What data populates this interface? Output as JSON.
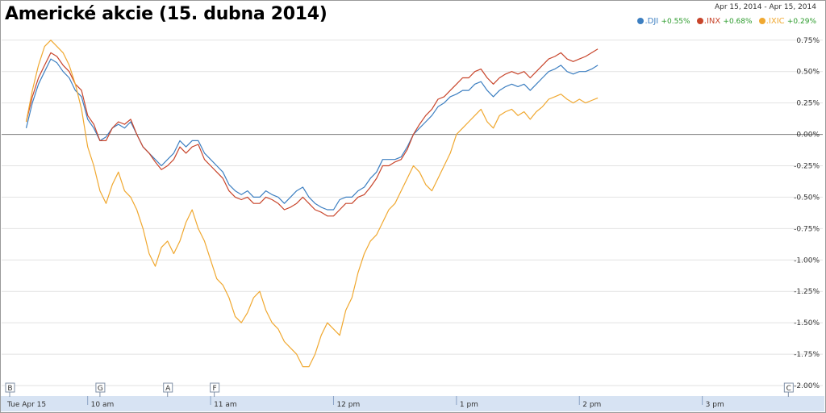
{
  "title": "Americké akcie (15. dubna 2014)",
  "date_range": "Apr 15, 2014  -  Apr 15, 2014",
  "legend": [
    {
      "symbol": ".DJI",
      "change": "+0.55%",
      "color": "#3d7fc1"
    },
    {
      "symbol": ".INX",
      "change": "+0.68%",
      "color": "#c8452b"
    },
    {
      "symbol": ".IXIC",
      "change": "+0.29%",
      "color": "#f0a830"
    }
  ],
  "colors": {
    "positive_change": "#2a9a2a",
    "grid": "#e2e2e2",
    "zero_line": "#777777",
    "axis_bar": "#d7e3f3"
  },
  "markers": [
    {
      "label": "B",
      "time": 9.3
    },
    {
      "label": "G",
      "time": 10.1
    },
    {
      "label": "A",
      "time": 10.65
    },
    {
      "label": "F",
      "time": 11.03
    },
    {
      "label": "C",
      "time": 15.7
    }
  ],
  "chart_data": {
    "type": "line",
    "title": "Americké akcie (15. dubna 2014)",
    "x_unit": "hour of day",
    "x_tick_labels": [
      {
        "label": "Tue Apr 15",
        "x": 9.3
      },
      {
        "label": "10 am",
        "x": 10
      },
      {
        "label": "11 am",
        "x": 11
      },
      {
        "label": "12 pm",
        "x": 12
      },
      {
        "label": "1 pm",
        "x": 13
      },
      {
        "label": "2 pm",
        "x": 14
      },
      {
        "label": "3 pm",
        "x": 15
      }
    ],
    "y_ticks": [
      0.75,
      0.5,
      0.25,
      0,
      -0.25,
      -0.5,
      -0.75,
      -1,
      -1.25,
      -1.5,
      -1.75,
      -2
    ],
    "y_tick_labels": [
      "0.75%",
      "0.50%",
      "0.25%",
      "0.00%",
      "-0.25%",
      "-0.50%",
      "-0.75%",
      "-1.00%",
      "-1.25%",
      "-1.50%",
      "-1.75%",
      "-2.00%"
    ],
    "xlim": [
      9.3,
      15.98
    ],
    "ylim": [
      -2.0,
      0.8
    ],
    "grid": true,
    "legend_position": "top-right",
    "series": [
      {
        "name": ".DJI",
        "color": "#3d7fc1",
        "points": [
          [
            9.5,
            0.05
          ],
          [
            9.55,
            0.25
          ],
          [
            9.6,
            0.4
          ],
          [
            9.65,
            0.5
          ],
          [
            9.7,
            0.6
          ],
          [
            9.75,
            0.57
          ],
          [
            9.8,
            0.5
          ],
          [
            9.85,
            0.45
          ],
          [
            9.9,
            0.35
          ],
          [
            9.95,
            0.3
          ],
          [
            10.0,
            0.12
          ],
          [
            10.05,
            0.05
          ],
          [
            10.1,
            -0.05
          ],
          [
            10.15,
            -0.02
          ],
          [
            10.2,
            0.05
          ],
          [
            10.25,
            0.08
          ],
          [
            10.3,
            0.05
          ],
          [
            10.35,
            0.1
          ],
          [
            10.4,
            0.0
          ],
          [
            10.45,
            -0.1
          ],
          [
            10.5,
            -0.15
          ],
          [
            10.55,
            -0.2
          ],
          [
            10.6,
            -0.25
          ],
          [
            10.65,
            -0.2
          ],
          [
            10.7,
            -0.15
          ],
          [
            10.75,
            -0.05
          ],
          [
            10.8,
            -0.1
          ],
          [
            10.85,
            -0.05
          ],
          [
            10.9,
            -0.05
          ],
          [
            10.95,
            -0.15
          ],
          [
            11.0,
            -0.2
          ],
          [
            11.05,
            -0.25
          ],
          [
            11.1,
            -0.3
          ],
          [
            11.15,
            -0.4
          ],
          [
            11.2,
            -0.45
          ],
          [
            11.25,
            -0.48
          ],
          [
            11.3,
            -0.45
          ],
          [
            11.35,
            -0.5
          ],
          [
            11.4,
            -0.5
          ],
          [
            11.45,
            -0.45
          ],
          [
            11.5,
            -0.48
          ],
          [
            11.55,
            -0.5
          ],
          [
            11.6,
            -0.55
          ],
          [
            11.65,
            -0.5
          ],
          [
            11.7,
            -0.45
          ],
          [
            11.75,
            -0.42
          ],
          [
            11.8,
            -0.5
          ],
          [
            11.85,
            -0.55
          ],
          [
            11.9,
            -0.58
          ],
          [
            11.95,
            -0.6
          ],
          [
            12.0,
            -0.6
          ],
          [
            12.05,
            -0.52
          ],
          [
            12.1,
            -0.5
          ],
          [
            12.15,
            -0.5
          ],
          [
            12.2,
            -0.45
          ],
          [
            12.25,
            -0.42
          ],
          [
            12.3,
            -0.35
          ],
          [
            12.35,
            -0.3
          ],
          [
            12.4,
            -0.2
          ],
          [
            12.45,
            -0.2
          ],
          [
            12.5,
            -0.2
          ],
          [
            12.55,
            -0.18
          ],
          [
            12.6,
            -0.1
          ],
          [
            12.65,
            0.0
          ],
          [
            12.7,
            0.05
          ],
          [
            12.75,
            0.1
          ],
          [
            12.8,
            0.15
          ],
          [
            12.85,
            0.22
          ],
          [
            12.9,
            0.25
          ],
          [
            12.95,
            0.3
          ],
          [
            13.0,
            0.32
          ],
          [
            13.05,
            0.35
          ],
          [
            13.1,
            0.35
          ],
          [
            13.15,
            0.4
          ],
          [
            13.2,
            0.42
          ],
          [
            13.25,
            0.35
          ],
          [
            13.3,
            0.3
          ],
          [
            13.35,
            0.35
          ],
          [
            13.4,
            0.38
          ],
          [
            13.45,
            0.4
          ],
          [
            13.5,
            0.38
          ],
          [
            13.55,
            0.4
          ],
          [
            13.6,
            0.35
          ],
          [
            13.65,
            0.4
          ],
          [
            13.7,
            0.45
          ],
          [
            13.75,
            0.5
          ],
          [
            13.8,
            0.52
          ],
          [
            13.85,
            0.55
          ],
          [
            13.9,
            0.5
          ],
          [
            13.95,
            0.48
          ],
          [
            14.0,
            0.5
          ],
          [
            14.05,
            0.5
          ],
          [
            14.1,
            0.52
          ],
          [
            14.15,
            0.55
          ]
        ]
      },
      {
        "name": ".INX",
        "color": "#c8452b",
        "points": [
          [
            9.5,
            0.1
          ],
          [
            9.55,
            0.3
          ],
          [
            9.6,
            0.45
          ],
          [
            9.65,
            0.55
          ],
          [
            9.7,
            0.65
          ],
          [
            9.75,
            0.62
          ],
          [
            9.8,
            0.55
          ],
          [
            9.85,
            0.5
          ],
          [
            9.9,
            0.4
          ],
          [
            9.95,
            0.35
          ],
          [
            10.0,
            0.15
          ],
          [
            10.05,
            0.08
          ],
          [
            10.1,
            -0.05
          ],
          [
            10.15,
            -0.05
          ],
          [
            10.2,
            0.05
          ],
          [
            10.25,
            0.1
          ],
          [
            10.3,
            0.08
          ],
          [
            10.35,
            0.12
          ],
          [
            10.4,
            0.0
          ],
          [
            10.45,
            -0.1
          ],
          [
            10.5,
            -0.15
          ],
          [
            10.55,
            -0.22
          ],
          [
            10.6,
            -0.28
          ],
          [
            10.65,
            -0.25
          ],
          [
            10.7,
            -0.2
          ],
          [
            10.75,
            -0.1
          ],
          [
            10.8,
            -0.15
          ],
          [
            10.85,
            -0.1
          ],
          [
            10.9,
            -0.08
          ],
          [
            10.95,
            -0.2
          ],
          [
            11.0,
            -0.25
          ],
          [
            11.05,
            -0.3
          ],
          [
            11.1,
            -0.35
          ],
          [
            11.15,
            -0.45
          ],
          [
            11.2,
            -0.5
          ],
          [
            11.25,
            -0.52
          ],
          [
            11.3,
            -0.5
          ],
          [
            11.35,
            -0.55
          ],
          [
            11.4,
            -0.55
          ],
          [
            11.45,
            -0.5
          ],
          [
            11.5,
            -0.52
          ],
          [
            11.55,
            -0.55
          ],
          [
            11.6,
            -0.6
          ],
          [
            11.65,
            -0.58
          ],
          [
            11.7,
            -0.55
          ],
          [
            11.75,
            -0.5
          ],
          [
            11.8,
            -0.55
          ],
          [
            11.85,
            -0.6
          ],
          [
            11.9,
            -0.62
          ],
          [
            11.95,
            -0.65
          ],
          [
            12.0,
            -0.65
          ],
          [
            12.05,
            -0.6
          ],
          [
            12.1,
            -0.55
          ],
          [
            12.15,
            -0.55
          ],
          [
            12.2,
            -0.5
          ],
          [
            12.25,
            -0.48
          ],
          [
            12.3,
            -0.42
          ],
          [
            12.35,
            -0.35
          ],
          [
            12.4,
            -0.25
          ],
          [
            12.45,
            -0.25
          ],
          [
            12.5,
            -0.22
          ],
          [
            12.55,
            -0.2
          ],
          [
            12.6,
            -0.12
          ],
          [
            12.65,
            0.0
          ],
          [
            12.7,
            0.08
          ],
          [
            12.75,
            0.15
          ],
          [
            12.8,
            0.2
          ],
          [
            12.85,
            0.28
          ],
          [
            12.9,
            0.3
          ],
          [
            12.95,
            0.35
          ],
          [
            13.0,
            0.4
          ],
          [
            13.05,
            0.45
          ],
          [
            13.1,
            0.45
          ],
          [
            13.15,
            0.5
          ],
          [
            13.2,
            0.52
          ],
          [
            13.25,
            0.45
          ],
          [
            13.3,
            0.4
          ],
          [
            13.35,
            0.45
          ],
          [
            13.4,
            0.48
          ],
          [
            13.45,
            0.5
          ],
          [
            13.5,
            0.48
          ],
          [
            13.55,
            0.5
          ],
          [
            13.6,
            0.45
          ],
          [
            13.65,
            0.5
          ],
          [
            13.7,
            0.55
          ],
          [
            13.75,
            0.6
          ],
          [
            13.8,
            0.62
          ],
          [
            13.85,
            0.65
          ],
          [
            13.9,
            0.6
          ],
          [
            13.95,
            0.58
          ],
          [
            14.0,
            0.6
          ],
          [
            14.05,
            0.62
          ],
          [
            14.1,
            0.65
          ],
          [
            14.15,
            0.68
          ]
        ]
      },
      {
        "name": ".IXIC",
        "color": "#f0a830",
        "points": [
          [
            9.5,
            0.1
          ],
          [
            9.55,
            0.35
          ],
          [
            9.6,
            0.55
          ],
          [
            9.65,
            0.7
          ],
          [
            9.7,
            0.75
          ],
          [
            9.75,
            0.7
          ],
          [
            9.8,
            0.65
          ],
          [
            9.85,
            0.55
          ],
          [
            9.9,
            0.4
          ],
          [
            9.95,
            0.2
          ],
          [
            10.0,
            -0.1
          ],
          [
            10.05,
            -0.25
          ],
          [
            10.1,
            -0.45
          ],
          [
            10.15,
            -0.55
          ],
          [
            10.2,
            -0.4
          ],
          [
            10.25,
            -0.3
          ],
          [
            10.3,
            -0.45
          ],
          [
            10.35,
            -0.5
          ],
          [
            10.4,
            -0.6
          ],
          [
            10.45,
            -0.75
          ],
          [
            10.5,
            -0.95
          ],
          [
            10.55,
            -1.05
          ],
          [
            10.6,
            -0.9
          ],
          [
            10.65,
            -0.85
          ],
          [
            10.7,
            -0.95
          ],
          [
            10.75,
            -0.85
          ],
          [
            10.8,
            -0.7
          ],
          [
            10.85,
            -0.6
          ],
          [
            10.9,
            -0.75
          ],
          [
            10.95,
            -0.85
          ],
          [
            11.0,
            -1.0
          ],
          [
            11.05,
            -1.15
          ],
          [
            11.1,
            -1.2
          ],
          [
            11.15,
            -1.3
          ],
          [
            11.2,
            -1.45
          ],
          [
            11.25,
            -1.5
          ],
          [
            11.3,
            -1.42
          ],
          [
            11.35,
            -1.3
          ],
          [
            11.4,
            -1.25
          ],
          [
            11.45,
            -1.4
          ],
          [
            11.5,
            -1.5
          ],
          [
            11.55,
            -1.55
          ],
          [
            11.6,
            -1.65
          ],
          [
            11.65,
            -1.7
          ],
          [
            11.7,
            -1.75
          ],
          [
            11.75,
            -1.85
          ],
          [
            11.8,
            -1.85
          ],
          [
            11.85,
            -1.75
          ],
          [
            11.9,
            -1.6
          ],
          [
            11.95,
            -1.5
          ],
          [
            12.0,
            -1.55
          ],
          [
            12.05,
            -1.6
          ],
          [
            12.1,
            -1.4
          ],
          [
            12.15,
            -1.3
          ],
          [
            12.2,
            -1.1
          ],
          [
            12.25,
            -0.95
          ],
          [
            12.3,
            -0.85
          ],
          [
            12.35,
            -0.8
          ],
          [
            12.4,
            -0.7
          ],
          [
            12.45,
            -0.6
          ],
          [
            12.5,
            -0.55
          ],
          [
            12.55,
            -0.45
          ],
          [
            12.6,
            -0.35
          ],
          [
            12.65,
            -0.25
          ],
          [
            12.7,
            -0.3
          ],
          [
            12.75,
            -0.4
          ],
          [
            12.8,
            -0.45
          ],
          [
            12.85,
            -0.35
          ],
          [
            12.9,
            -0.25
          ],
          [
            12.95,
            -0.15
          ],
          [
            13.0,
            0.0
          ],
          [
            13.05,
            0.05
          ],
          [
            13.1,
            0.1
          ],
          [
            13.15,
            0.15
          ],
          [
            13.2,
            0.2
          ],
          [
            13.25,
            0.1
          ],
          [
            13.3,
            0.05
          ],
          [
            13.35,
            0.15
          ],
          [
            13.4,
            0.18
          ],
          [
            13.45,
            0.2
          ],
          [
            13.5,
            0.15
          ],
          [
            13.55,
            0.18
          ],
          [
            13.6,
            0.12
          ],
          [
            13.65,
            0.18
          ],
          [
            13.7,
            0.22
          ],
          [
            13.75,
            0.28
          ],
          [
            13.8,
            0.3
          ],
          [
            13.85,
            0.32
          ],
          [
            13.9,
            0.28
          ],
          [
            13.95,
            0.25
          ],
          [
            14.0,
            0.28
          ],
          [
            14.05,
            0.25
          ],
          [
            14.1,
            0.27
          ],
          [
            14.15,
            0.29
          ]
        ]
      }
    ]
  }
}
